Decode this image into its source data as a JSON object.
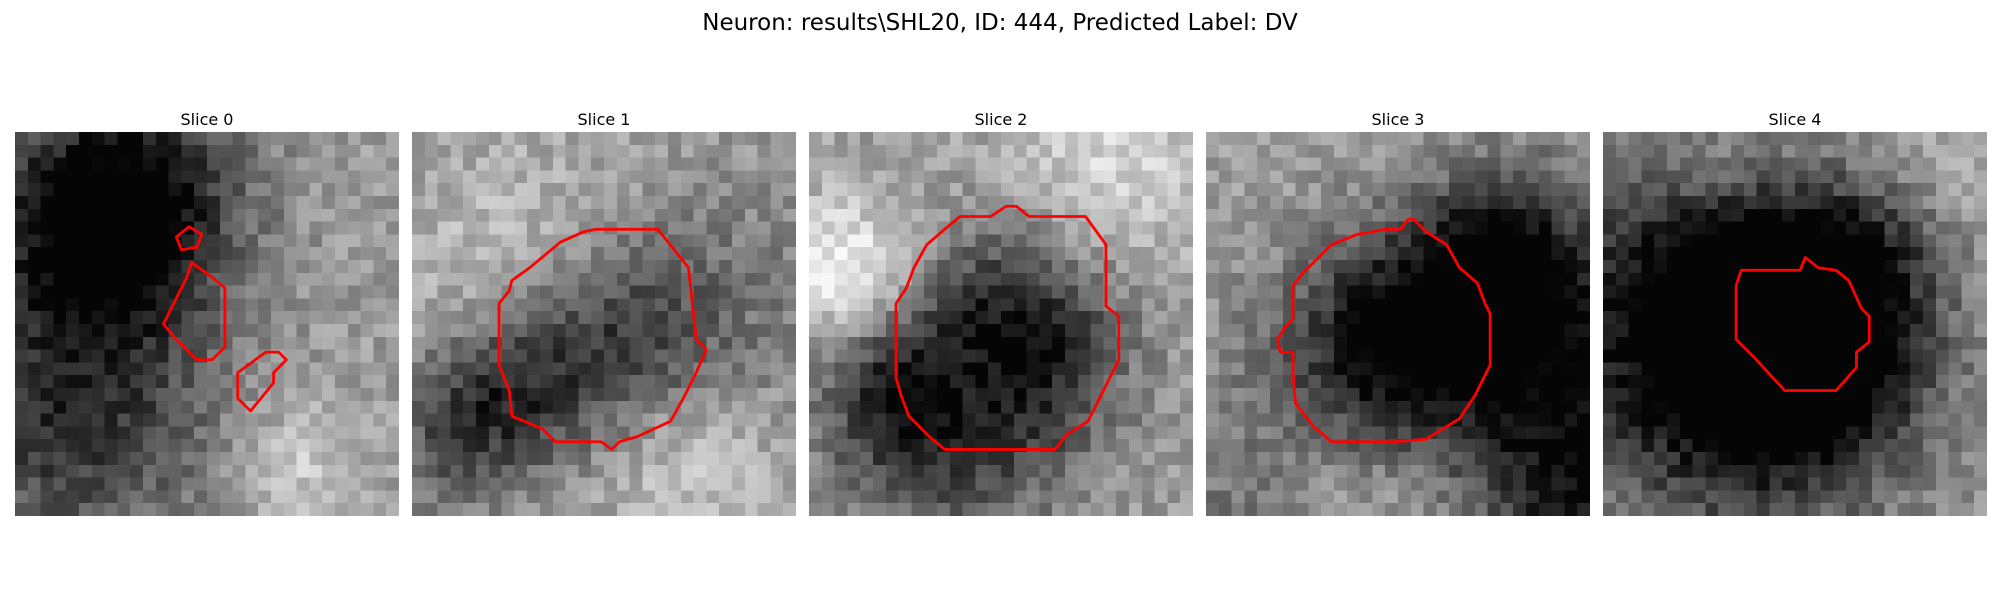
{
  "figure": {
    "title": "Neuron: results\\SHL20, ID: 444, Predicted Label: DV"
  },
  "panels": [
    {
      "title": "Slice 0",
      "seed": 11,
      "blob_dark": false
    },
    {
      "title": "Slice 1",
      "seed": 23,
      "blob_dark": true
    },
    {
      "title": "Slice 2",
      "seed": 37,
      "blob_dark": true
    },
    {
      "title": "Slice 3",
      "seed": 41,
      "blob_dark": true
    },
    {
      "title": "Slice 4",
      "seed": 53,
      "blob_dark": true
    }
  ],
  "style": {
    "contour_color": "#ff0000",
    "colormap": "gray"
  }
}
